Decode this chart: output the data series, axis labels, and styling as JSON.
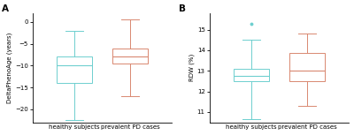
{
  "panel_A": {
    "label": "A",
    "ylabel": "DeltaPhenoAge (years)",
    "xtick_labels": [
      "healthy subjects",
      "prevalent PD cases"
    ],
    "ylim": [
      -23,
      2
    ],
    "yticks": [
      0,
      -5,
      -10,
      -15,
      -20
    ],
    "healthy": {
      "whislo": -22.5,
      "q1": -14.0,
      "med": -10.0,
      "q3": -8.0,
      "whishi": -2.0,
      "fliers": []
    },
    "pd": {
      "whislo": -17.0,
      "q1": -9.5,
      "med": -8.0,
      "q3": -6.0,
      "whishi": 0.5,
      "fliers": []
    },
    "color_healthy": "#6ecfcf",
    "color_pd": "#d98870"
  },
  "panel_B": {
    "label": "B",
    "ylabel": "RDW (%)",
    "xtick_labels": [
      "healthy subjects",
      "prevalent PD cases"
    ],
    "ylim": [
      10.5,
      15.8
    ],
    "yticks": [
      11,
      12,
      13,
      14,
      15
    ],
    "healthy": {
      "whislo": 10.65,
      "q1": 12.5,
      "med": 12.75,
      "q3": 13.1,
      "whishi": 14.5,
      "fliers": [
        15.3
      ]
    },
    "pd": {
      "whislo": 11.3,
      "q1": 12.5,
      "med": 13.0,
      "q3": 13.85,
      "whishi": 14.8,
      "fliers": []
    },
    "color_healthy": "#6ecfcf",
    "color_pd": "#d98870"
  },
  "background_color": "#ffffff",
  "figsize": [
    4.0,
    1.53
  ],
  "dpi": 100
}
